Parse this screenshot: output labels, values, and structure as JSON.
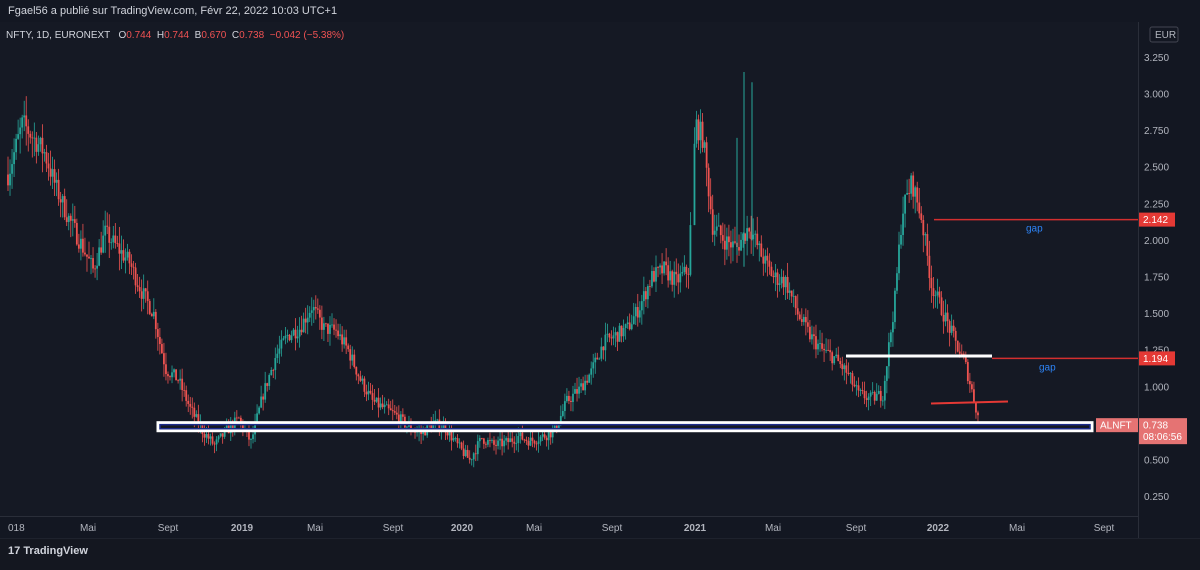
{
  "header": {
    "published_by": "Fgael56 a publié sur TradingView.com, Févr 22, 2022 10:03 UTC+1"
  },
  "symbol": {
    "name": "NFTY, 1D, EURONEXT",
    "open_label": "O",
    "open": "0.744",
    "high_label": "H",
    "high": "0.744",
    "low_label": "B",
    "low": "0.670",
    "close_label": "C",
    "close": "0.738",
    "change": "−0.042 (−5.38%)"
  },
  "price_axis": {
    "currency": "EUR"
  },
  "footer": {
    "brand": "TradingView"
  },
  "colors": {
    "up": "#26a69a",
    "down": "#ef5350",
    "background": "#151924",
    "gap_text": "#2d83f5"
  },
  "chart_data": {
    "type": "candlestick",
    "y_axis": {
      "min": 0.0,
      "max": 3.4,
      "ticks": [
        0.25,
        0.5,
        0.75,
        1.0,
        1.25,
        1.5,
        1.75,
        2.0,
        2.25,
        2.5,
        2.75,
        3.0,
        3.25
      ]
    },
    "x_axis": {
      "ticks": [
        "018",
        "Mai",
        "Sept",
        "2019",
        "Mai",
        "Sept",
        "2020",
        "Mai",
        "Sept",
        "2021",
        "Mai",
        "Sept",
        "2022",
        "Mai",
        "Sept"
      ]
    },
    "price_path": [
      [
        0,
        2.45
      ],
      [
        1.2,
        2.8
      ],
      [
        3,
        2.6
      ],
      [
        4,
        2.35
      ],
      [
        5,
        2.15
      ],
      [
        6,
        1.98
      ],
      [
        7,
        1.8
      ],
      [
        8,
        2.05
      ],
      [
        9,
        1.95
      ],
      [
        10,
        1.85
      ],
      [
        11,
        1.65
      ],
      [
        12,
        1.5
      ],
      [
        12.5,
        1.3
      ],
      [
        13,
        1.12
      ],
      [
        14,
        1.05
      ],
      [
        15,
        0.85
      ],
      [
        16,
        0.7
      ],
      [
        17,
        0.6
      ],
      [
        18,
        0.7
      ],
      [
        19,
        0.78
      ],
      [
        20,
        0.62
      ],
      [
        21,
        0.95
      ],
      [
        22,
        1.2
      ],
      [
        23,
        1.35
      ],
      [
        24,
        1.4
      ],
      [
        25,
        1.55
      ],
      [
        26,
        1.4
      ],
      [
        27,
        1.38
      ],
      [
        28,
        1.25
      ],
      [
        29,
        1.05
      ],
      [
        30,
        0.9
      ],
      [
        31,
        0.85
      ],
      [
        32,
        0.8
      ],
      [
        33,
        0.72
      ],
      [
        34,
        0.68
      ],
      [
        35,
        0.75
      ],
      [
        36,
        0.72
      ],
      [
        37,
        0.6
      ],
      [
        38,
        0.5
      ],
      [
        39,
        0.65
      ],
      [
        40,
        0.6
      ],
      [
        41,
        0.62
      ],
      [
        42,
        0.66
      ],
      [
        43,
        0.63
      ],
      [
        44,
        0.66
      ],
      [
        45,
        0.7
      ],
      [
        46,
        0.9
      ],
      [
        47,
        0.98
      ],
      [
        48,
        1.1
      ],
      [
        49,
        1.3
      ],
      [
        50,
        1.35
      ],
      [
        51,
        1.4
      ],
      [
        52,
        1.55
      ],
      [
        53,
        1.75
      ],
      [
        54,
        1.8
      ],
      [
        55,
        1.72
      ],
      [
        56,
        1.8
      ],
      [
        56.6,
        2.8
      ],
      [
        57.2,
        2.7
      ],
      [
        58,
        2.1
      ],
      [
        59,
        2.0
      ],
      [
        60,
        1.95
      ],
      [
        61,
        2.1
      ],
      [
        62,
        1.9
      ],
      [
        63,
        1.75
      ],
      [
        64,
        1.72
      ],
      [
        65,
        1.5
      ],
      [
        66,
        1.35
      ],
      [
        67,
        1.25
      ],
      [
        68,
        1.2
      ],
      [
        69,
        1.1
      ],
      [
        70,
        0.95
      ],
      [
        71,
        0.92
      ],
      [
        72,
        0.95
      ],
      [
        73,
        1.6
      ],
      [
        73.6,
        2.2
      ],
      [
        74.4,
        2.4
      ],
      [
        75.2,
        2.15
      ],
      [
        76,
        1.7
      ],
      [
        77,
        1.5
      ],
      [
        78,
        1.3
      ],
      [
        78.8,
        1.15
      ],
      [
        79.4,
        0.95
      ],
      [
        80,
        0.74
      ]
    ],
    "price_range": {
      "first_date": "2018-01",
      "last_date": "2022-02-22"
    },
    "current_price": 0.738,
    "current_price_countdown": "08:06:56",
    "symbol_tag": "ALNFT",
    "price_labels": [
      {
        "value": 2.142,
        "label": "2.142",
        "note": "gap"
      },
      {
        "value": 1.194,
        "label": "1.194",
        "note": "gap"
      }
    ],
    "support_box": {
      "from_date": "2018-09",
      "to_date": "2022-09",
      "low": 0.7,
      "high": 0.755
    },
    "white_line": {
      "from_date": "2021-09",
      "to_date": "2022-03",
      "value": 1.21
    },
    "red_segment": {
      "from_date": "2022-01",
      "to_date": "2022-03",
      "value": 0.9
    },
    "grid": false
  }
}
